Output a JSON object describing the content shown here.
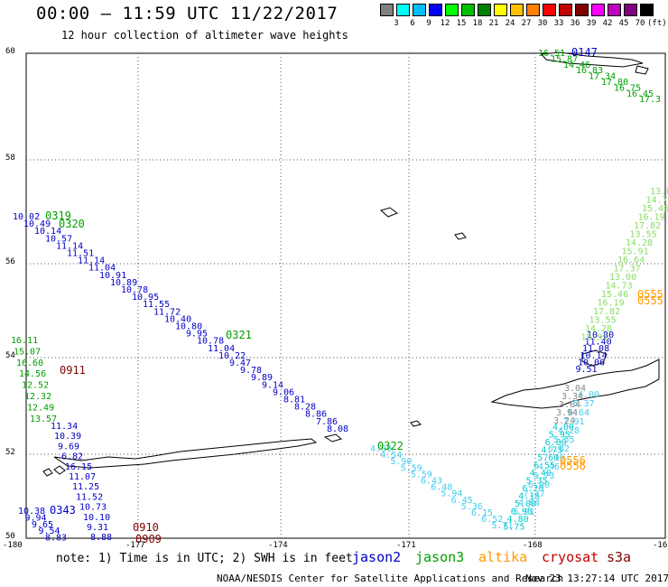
{
  "header": {
    "title": "00:00 – 11:59 UTC 11/22/2017",
    "subtitle": "12 hour collection of altimeter wave heights"
  },
  "color_scale": {
    "colors": [
      "#808080",
      "#00ffff",
      "#00bfff",
      "#0000ff",
      "#00ff00",
      "#00c000",
      "#008000",
      "#ffff00",
      "#ffc000",
      "#ff8000",
      "#ff0000",
      "#c00000",
      "#800000",
      "#ff00ff",
      "#c000c0",
      "#800080",
      "#000000"
    ],
    "labels": [
      "3",
      "6",
      "9",
      "12",
      "15",
      "18",
      "21",
      "24",
      "27",
      "30",
      "33",
      "36",
      "39",
      "42",
      "45",
      "70",
      "(ft)"
    ]
  },
  "axes": {
    "lat_labels": [
      "60",
      "58",
      "56",
      "54",
      "52",
      "50"
    ],
    "lon_labels": [
      "-180",
      "-177",
      "-174",
      "-171",
      "-168",
      "-16"
    ]
  },
  "colors": {
    "jason2": "#0000c8",
    "jason3": "#00a000",
    "altika": "#ff9900",
    "cryosat": "#c00000",
    "s3a": "#800000",
    "light_green": "#88dd66",
    "cyan": "#00cccc",
    "light_cyan": "#44ccee",
    "gray": "#888888",
    "dark_red": "#800000"
  },
  "tracks": {
    "north_east": {
      "color": "#00a000",
      "labels": [
        "16.51",
        "15.87",
        "14.46",
        "16.83",
        "17.34",
        "17.80",
        "16.75",
        "16.45",
        "17.3"
      ]
    },
    "main_diag": {
      "color": "#0000c8",
      "labels": [
        "10.02",
        "10.49",
        "10.14",
        "10.57",
        "11.14",
        "11.51",
        "11.14",
        "11.04",
        "10.91",
        "10.89",
        "10.78",
        "10.95",
        "11.55",
        "11.72",
        "10.40",
        "10.80",
        "9.95",
        "10.78",
        "11.04",
        "10.22",
        "9.47",
        "9.78",
        "9.89",
        "9.14",
        "9.06",
        "8.81",
        "8.28",
        "8.86",
        "7.86",
        "8.08"
      ]
    },
    "lower_diag": {
      "color": "#44ccee",
      "labels": [
        "4.90",
        "4.54",
        "5.90",
        "5.59",
        "5.59",
        "6.43",
        "6.48",
        "5.94",
        "6.45",
        "5.36",
        "6.15",
        "6.52",
        "5.71"
      ]
    },
    "west": {
      "color": "#00a000",
      "labels": [
        "16.11",
        "15.07",
        "16.60",
        "14.56",
        "12.52",
        "12.32",
        "12.49",
        "13.57"
      ]
    },
    "west_blue": {
      "color": "#0000c8",
      "labels": [
        "11.34",
        "10.39",
        "9.69",
        "6.82",
        "16.15",
        "11.07",
        "11.25",
        "11.52",
        "10.73",
        "10.10",
        "9.31",
        "8.88"
      ]
    },
    "sw_blue": {
      "color": "#0000c8",
      "labels": [
        "10.38",
        "9.94",
        "9.65",
        "9.54",
        "8.83"
      ]
    },
    "east_blue": {
      "color": "#0000c8",
      "labels": [
        "10.80",
        "11.40",
        "11.08",
        "10.14",
        "10.06",
        "9.51"
      ]
    }
  },
  "times": [
    {
      "label": "0147",
      "color": "#0000c8"
    },
    {
      "label": "0319",
      "color": "#00a000"
    },
    {
      "label": "0320",
      "color": "#00a000"
    },
    {
      "label": "0321",
      "color": "#00a000"
    },
    {
      "label": "0322",
      "color": "#00a000"
    },
    {
      "label": "0911",
      "color": "#800000"
    },
    {
      "label": "0343",
      "color": "#0000c8"
    },
    {
      "label": "0910",
      "color": "#800000"
    },
    {
      "label": "0909",
      "color": "#800000"
    },
    {
      "label": "0555",
      "color": "#ff9900"
    },
    {
      "label": "0555",
      "color": "#ff9900"
    },
    {
      "label": "0556",
      "color": "#ff9900"
    },
    {
      "label": "0556",
      "color": "#ff9900"
    }
  ],
  "legend": {
    "note": "note: 1) Time is in UTC; 2) SWH is in feet",
    "satellites": [
      {
        "name": "jason2",
        "color": "#0000c8"
      },
      {
        "name": "jason3",
        "color": "#00a000"
      },
      {
        "name": "altika",
        "color": "#ff9900"
      },
      {
        "name": "cryosat",
        "color": "#c00000"
      },
      {
        "name": "s3a",
        "color": "#800000"
      }
    ]
  },
  "footer": {
    "credit": "NOAA/NESDIS Center for Satellite Applications and Research",
    "timestamp": "Nov 23 13:27:14 UTC 2017"
  }
}
